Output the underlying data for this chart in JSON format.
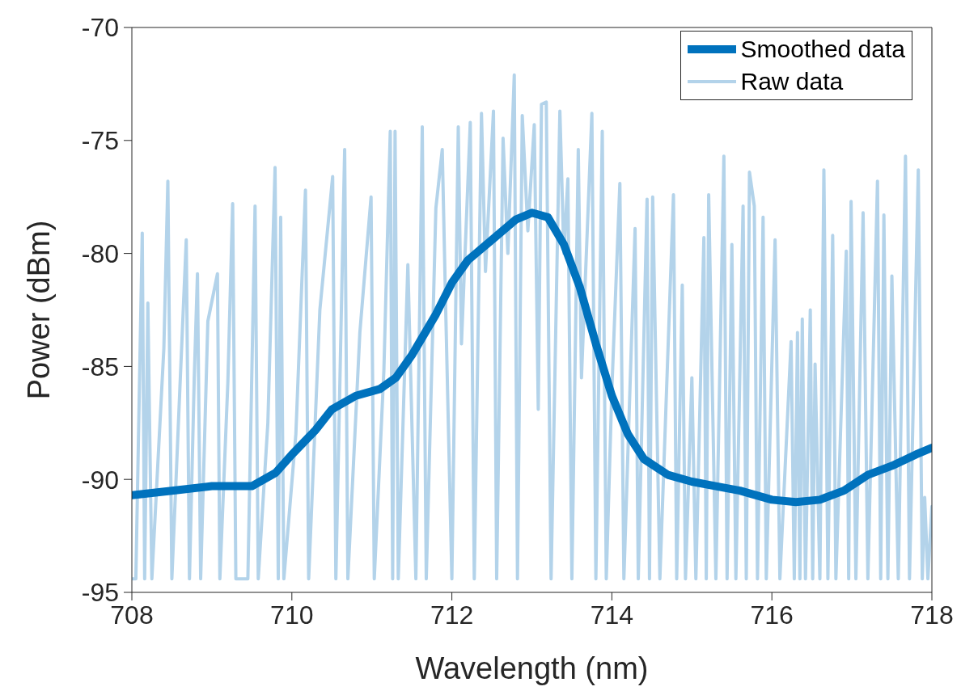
{
  "chart_data": {
    "type": "line",
    "xlabel": "Wavelength (nm)",
    "ylabel": "Power (dBm)",
    "xlim": [
      708,
      718
    ],
    "xticks": [
      708,
      710,
      712,
      714,
      716,
      718
    ],
    "ylim": [
      -95,
      -70
    ],
    "yticks": [
      -95,
      -90,
      -85,
      -80,
      -75,
      -70
    ],
    "grid": false,
    "legend": "top right",
    "marker": "none",
    "line_style": "solid",
    "series": [
      {
        "name": "Smoothed data",
        "color": "#0072bd",
        "x": [
          708,
          708.5,
          709,
          709.5,
          709.8,
          710,
          710.3,
          710.5,
          710.8,
          711.1,
          711.3,
          711.5,
          711.8,
          712,
          712.2,
          712.5,
          712.8,
          713,
          713.2,
          713.4,
          713.6,
          713.8,
          714,
          714.2,
          714.4,
          714.7,
          715,
          715.3,
          715.6,
          716,
          716.3,
          716.6,
          716.9,
          717.2,
          717.5,
          717.8,
          718
        ],
        "values": [
          -90.7,
          -90.5,
          -90.3,
          -90.3,
          -89.7,
          -88.9,
          -87.8,
          -86.9,
          -86.3,
          -86,
          -85.5,
          -84.5,
          -82.7,
          -81.3,
          -80.3,
          -79.4,
          -78.5,
          -78.2,
          -78.4,
          -79.6,
          -81.5,
          -84,
          -86.3,
          -88,
          -89.1,
          -89.8,
          -90.1,
          -90.3,
          -90.5,
          -90.9,
          -91,
          -90.9,
          -90.5,
          -89.8,
          -89.4,
          -88.9,
          -88.6
        ]
      },
      {
        "name": "Raw data",
        "color": "#b3d3ea",
        "x": [
          708,
          708.05,
          708.13,
          708.16,
          708.2,
          708.25,
          708.4,
          708.45,
          708.5,
          708.6,
          708.68,
          708.72,
          708.78,
          708.82,
          708.86,
          708.95,
          709.07,
          709.1,
          709.2,
          709.26,
          709.3,
          709.45,
          709.54,
          709.58,
          709.7,
          709.79,
          709.83,
          709.86,
          709.9,
          710.05,
          710.17,
          710.21,
          710.35,
          710.51,
          710.55,
          710.66,
          710.7,
          710.85,
          710.99,
          711.03,
          711.15,
          711.23,
          711.26,
          711.29,
          711.33,
          711.45,
          711.55,
          711.63,
          711.68,
          711.8,
          711.88,
          711.92,
          712,
          712.08,
          712.12,
          712.23,
          712.28,
          712.37,
          712.42,
          712.52,
          712.56,
          712.64,
          712.7,
          712.78,
          712.82,
          712.88,
          712.95,
          713.03,
          713.08,
          713.12,
          713.18,
          713.24,
          713.35,
          713.4,
          713.45,
          713.5,
          713.58,
          713.62,
          713.75,
          713.8,
          713.88,
          713.93,
          714,
          714.1,
          714.15,
          714.29,
          714.33,
          714.44,
          714.47,
          714.51,
          714.6,
          714.77,
          714.81,
          714.88,
          714.92,
          715,
          715.05,
          715.15,
          715.18,
          715.21,
          715.3,
          715.4,
          715.44,
          715.5,
          715.55,
          715.64,
          715.68,
          715.72,
          715.78,
          715.82,
          715.89,
          715.93,
          716.04,
          716.1,
          716.24,
          716.28,
          716.32,
          716.35,
          716.38,
          716.42,
          716.48,
          716.51,
          716.54,
          716.6,
          716.65,
          716.7,
          716.76,
          716.8,
          716.93,
          716.96,
          716.99,
          717.05,
          717.14,
          717.2,
          717.32,
          717.36,
          717.4,
          717.45,
          717.5,
          717.58,
          717.67,
          717.72,
          717.83,
          717.88,
          717.91,
          717.95,
          718
        ],
        "values": [
          -94.4,
          -94.4,
          -79.1,
          -94.4,
          -82.2,
          -94.4,
          -84.2,
          -76.8,
          -94.4,
          -86,
          -79.4,
          -94.4,
          -85.5,
          -80.9,
          -94.4,
          -83,
          -80.9,
          -94.4,
          -85.7,
          -77.8,
          -94.4,
          -94.4,
          -77.9,
          -94.4,
          -87.5,
          -76.2,
          -94.4,
          -78.4,
          -94.4,
          -88,
          -77.2,
          -94.4,
          -82.5,
          -76.6,
          -94.4,
          -75.4,
          -94.4,
          -83.5,
          -77.5,
          -94.4,
          -85.2,
          -74.6,
          -94.4,
          -74.6,
          -94.4,
          -80.5,
          -94.4,
          -74.4,
          -94.4,
          -78,
          -75.4,
          -82,
          -94.4,
          -74.4,
          -84,
          -74.2,
          -94.4,
          -73.8,
          -80.8,
          -73.7,
          -94.4,
          -74.9,
          -80,
          -72.1,
          -94.4,
          -73.9,
          -79,
          -74.3,
          -86.9,
          -73.4,
          -73.3,
          -94.4,
          -73.7,
          -80,
          -76.7,
          -94.4,
          -75.4,
          -85.5,
          -73.8,
          -94.4,
          -74.6,
          -94.4,
          -86,
          -76.9,
          -94.4,
          -78.9,
          -94.4,
          -77.6,
          -94.4,
          -77.5,
          -94.4,
          -77.4,
          -94.4,
          -81.4,
          -94.4,
          -85.5,
          -94.4,
          -79.3,
          -94.4,
          -77.4,
          -94.4,
          -75.7,
          -94.4,
          -79.6,
          -94.4,
          -77.9,
          -94.4,
          -76.4,
          -77.9,
          -94.4,
          -78.4,
          -94.4,
          -79.4,
          -94.4,
          -83.9,
          -94.4,
          -83.5,
          -94.4,
          -82.9,
          -94.4,
          -82.5,
          -94.4,
          -84.9,
          -94.4,
          -76.3,
          -94.4,
          -79.2,
          -94.4,
          -79.9,
          -94.4,
          -77.7,
          -94.4,
          -78.2,
          -94.4,
          -76.8,
          -94.4,
          -78.3,
          -94.4,
          -81,
          -94.4,
          -75.7,
          -94.4,
          -76.3,
          -94.4,
          -90.8,
          -94.4,
          -91.2
        ]
      }
    ]
  }
}
